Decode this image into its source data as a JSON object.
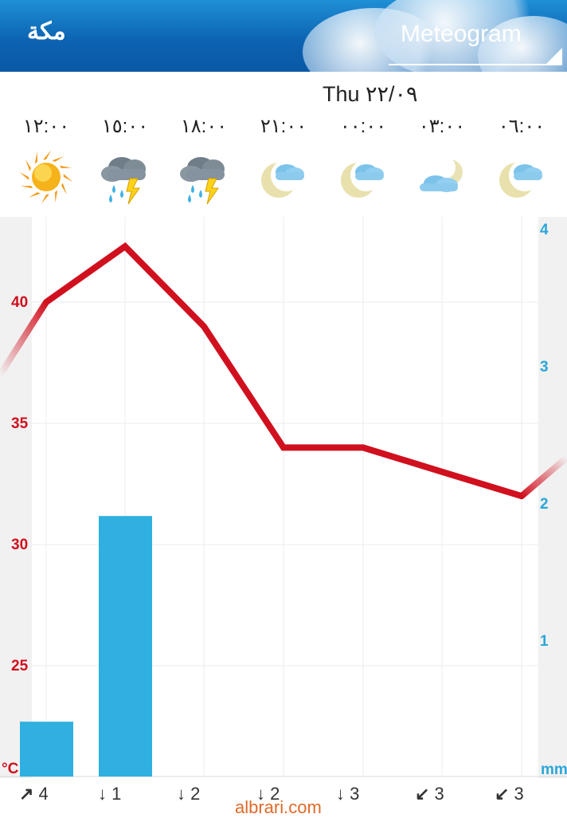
{
  "header": {
    "city": "مكة",
    "title": "Meteogram"
  },
  "date_label": "Thu ٢٢/٠٩",
  "forecast": [
    {
      "time": "١٢:٠٠",
      "icon": "sun-icon",
      "wind_dir": "↗",
      "wind": "4"
    },
    {
      "time": "١٥:٠٠",
      "icon": "thunderstorm-rain-icon",
      "wind_dir": "↓",
      "wind": "1"
    },
    {
      "time": "١٨:٠٠",
      "icon": "thunderstorm-rain-icon",
      "wind_dir": "↓",
      "wind": "2"
    },
    {
      "time": "٢١:٠٠",
      "icon": "moon-cloud-icon",
      "wind_dir": "↓",
      "wind": "2"
    },
    {
      "time": "٠٠:٠٠",
      "icon": "moon-cloud-icon",
      "wind_dir": "↓",
      "wind": "3"
    },
    {
      "time": "٠٣:٠٠",
      "icon": "cloud-moon-icon",
      "wind_dir": "↙",
      "wind": "3"
    },
    {
      "time": "٠٦:٠٠",
      "icon": "moon-cloud-icon",
      "wind_dir": "↙",
      "wind": "3"
    }
  ],
  "chart_data": {
    "type": "line",
    "x": [
      "١٢:٠٠",
      "١٥:٠٠",
      "١٨:٠٠",
      "٢١:٠٠",
      "٠٠:٠٠",
      "٠٣:٠٠",
      "٠٦:٠٠"
    ],
    "series": [
      {
        "values": [
          40,
          42.3,
          39,
          34,
          34,
          33,
          32
        ],
        "color": "#d0101e",
        "unit": "°C"
      },
      {
        "type": "bar",
        "values": [
          0.4,
          1.9,
          0,
          0,
          0,
          0,
          0
        ],
        "color": "#2fb0e0",
        "unit": "mm"
      }
    ],
    "left_axis": {
      "ticks": [
        "40",
        "35",
        "30",
        "25"
      ],
      "unit": "°C"
    },
    "right_axis": {
      "ticks": [
        "4",
        "3",
        "2",
        "1"
      ],
      "unit": "mm",
      "range": [
        0,
        4
      ]
    },
    "grid": true
  },
  "watermark": "albrari.com"
}
